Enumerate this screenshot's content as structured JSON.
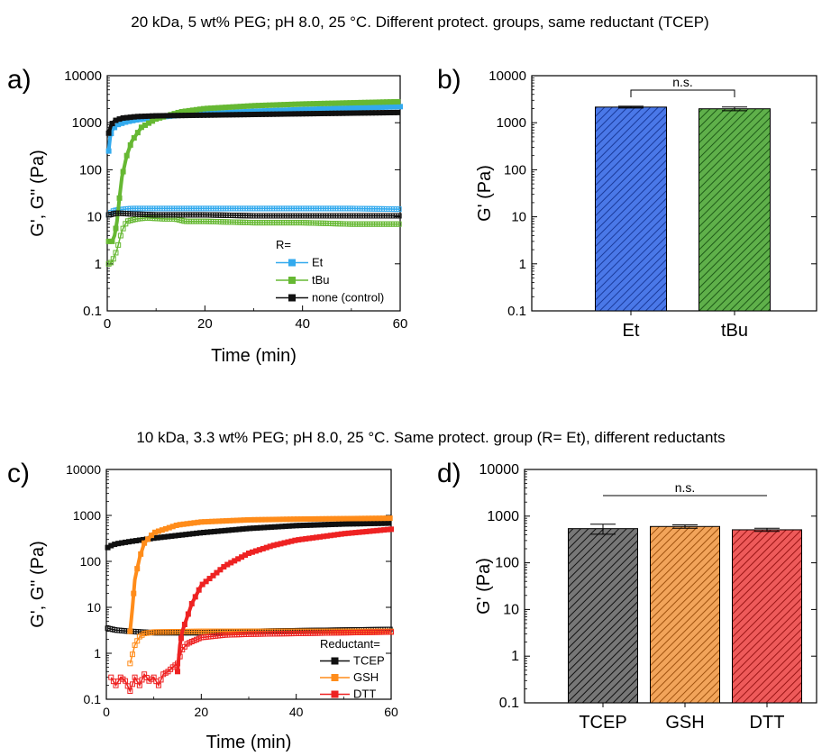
{
  "headers": {
    "top": "20 kDa, 5 wt% PEG; pH 8.0, 25 °C. Different protect. groups, same reductant (TCEP)",
    "bottom": "10 kDa, 3.3 wt% PEG; pH 8.0, 25 °C. Same protect. group (R= Et), different reductants"
  },
  "colors": {
    "Et": "#33aaee",
    "tBu": "#66b833",
    "none (control)": "#111111",
    "TCEP": "#111111",
    "GSH": "#ff8c1a",
    "DTT": "#ee2222"
  },
  "chart_data": [
    {
      "panel": "a)",
      "type": "line",
      "xlabel": "Time (min)",
      "ylabel": "G', G\" (Pa)",
      "xlim": [
        0,
        60
      ],
      "ylim": [
        0.1,
        10000
      ],
      "yscale": "log",
      "x_ticks": [
        "0",
        "20",
        "40",
        "60"
      ],
      "y_ticks": [
        "0.1",
        "1",
        "10",
        "100",
        "1000",
        "10000"
      ],
      "legend": {
        "title": "R=",
        "placement": "bottom-right",
        "entries": [
          "Et",
          "tBu",
          "none (control)"
        ]
      },
      "series": [
        {
          "name": "Et",
          "modulus": "G'",
          "marker": "filled-square",
          "points": [
            [
              0.3,
              250
            ],
            [
              0.6,
              500
            ],
            [
              1,
              700
            ],
            [
              2,
              900
            ],
            [
              4,
              1050
            ],
            [
              6,
              1150
            ],
            [
              10,
              1300
            ],
            [
              15,
              1450
            ],
            [
              20,
              1550
            ],
            [
              30,
              1750
            ],
            [
              40,
              1900
            ],
            [
              50,
              2050
            ],
            [
              60,
              2200
            ]
          ]
        },
        {
          "name": "Et",
          "modulus": "G\"",
          "marker": "open-square",
          "points": [
            [
              0.3,
              11
            ],
            [
              1,
              13
            ],
            [
              2,
              14
            ],
            [
              5,
              15
            ],
            [
              10,
              15
            ],
            [
              20,
              15
            ],
            [
              30,
              15
            ],
            [
              40,
              15
            ],
            [
              50,
              15
            ],
            [
              60,
              14.5
            ]
          ]
        },
        {
          "name": "tBu",
          "modulus": "G'",
          "marker": "filled-square",
          "points": [
            [
              0.3,
              3
            ],
            [
              1,
              3
            ],
            [
              1.5,
              4
            ],
            [
              2,
              8
            ],
            [
              2.5,
              25
            ],
            [
              3,
              70
            ],
            [
              4,
              200
            ],
            [
              5,
              400
            ],
            [
              7,
              800
            ],
            [
              10,
              1200
            ],
            [
              15,
              1700
            ],
            [
              20,
              2000
            ],
            [
              30,
              2300
            ],
            [
              40,
              2500
            ],
            [
              50,
              2650
            ],
            [
              60,
              2800
            ]
          ]
        },
        {
          "name": "tBu",
          "modulus": "G\"",
          "marker": "open-square",
          "points": [
            [
              0.3,
              1
            ],
            [
              1,
              1.1
            ],
            [
              2,
              2
            ],
            [
              3,
              5
            ],
            [
              4,
              8
            ],
            [
              6,
              9
            ],
            [
              8,
              9.5
            ],
            [
              12,
              9
            ],
            [
              14,
              9
            ],
            [
              16,
              8
            ],
            [
              20,
              8
            ],
            [
              30,
              7.5
            ],
            [
              40,
              7.5
            ],
            [
              50,
              7
            ],
            [
              60,
              7
            ]
          ]
        },
        {
          "name": "none (control)",
          "modulus": "G'",
          "marker": "filled-square",
          "points": [
            [
              0.3,
              600
            ],
            [
              0.8,
              900
            ],
            [
              1.5,
              1100
            ],
            [
              3,
              1250
            ],
            [
              6,
              1350
            ],
            [
              10,
              1400
            ],
            [
              20,
              1450
            ],
            [
              30,
              1500
            ],
            [
              40,
              1550
            ],
            [
              50,
              1600
            ],
            [
              60,
              1650
            ]
          ]
        },
        {
          "name": "none (control)",
          "modulus": "G\"",
          "marker": "open-square",
          "points": [
            [
              0.3,
              11
            ],
            [
              2,
              12
            ],
            [
              5,
              11.5
            ],
            [
              10,
              11
            ],
            [
              20,
              11
            ],
            [
              30,
              10.5
            ],
            [
              40,
              10.5
            ],
            [
              50,
              10.5
            ],
            [
              60,
              10.5
            ]
          ]
        }
      ]
    },
    {
      "panel": "b)",
      "type": "bar",
      "ylabel": "G' (Pa)",
      "ylim": [
        0.1,
        10000
      ],
      "yscale": "log",
      "y_ticks": [
        "0.1",
        "1",
        "10",
        "100",
        "1000",
        "10000"
      ],
      "categories": [
        "Et",
        "tBu"
      ],
      "values": [
        2150,
        1980
      ],
      "errors": [
        100,
        180
      ],
      "significance": [
        {
          "between": [
            "Et",
            "tBu"
          ],
          "label": "n.s."
        }
      ]
    },
    {
      "panel": "c)",
      "type": "line",
      "xlabel": "Time (min)",
      "ylabel": "G', G\" (Pa)",
      "xlim": [
        0,
        60
      ],
      "ylim": [
        0.1,
        10000
      ],
      "yscale": "log",
      "x_ticks": [
        "0",
        "20",
        "40",
        "60"
      ],
      "y_ticks": [
        "0.1",
        "1",
        "10",
        "100",
        "1000",
        "10000"
      ],
      "legend": {
        "title": "Reductant=",
        "placement": "bottom-right",
        "entries": [
          "TCEP",
          "GSH",
          "DTT"
        ]
      },
      "series": [
        {
          "name": "TCEP",
          "modulus": "G'",
          "marker": "filled-square",
          "points": [
            [
              0.3,
              200
            ],
            [
              1,
              220
            ],
            [
              2,
              240
            ],
            [
              5,
              270
            ],
            [
              10,
              320
            ],
            [
              20,
              420
            ],
            [
              30,
              520
            ],
            [
              40,
              600
            ],
            [
              50,
              650
            ],
            [
              60,
              680
            ]
          ]
        },
        {
          "name": "TCEP",
          "modulus": "G\"",
          "marker": "open-square",
          "points": [
            [
              0.3,
              3.5
            ],
            [
              2,
              3.2
            ],
            [
              5,
              3
            ],
            [
              10,
              2.8
            ],
            [
              20,
              2.8
            ],
            [
              30,
              3
            ],
            [
              40,
              3.1
            ],
            [
              50,
              3.2
            ],
            [
              60,
              3.3
            ]
          ]
        },
        {
          "name": "GSH",
          "modulus": "G'",
          "marker": "filled-square",
          "points": [
            [
              5,
              3
            ],
            [
              5.5,
              10
            ],
            [
              6,
              40
            ],
            [
              7,
              120
            ],
            [
              8,
              250
            ],
            [
              10,
              420
            ],
            [
              15,
              620
            ],
            [
              20,
              720
            ],
            [
              30,
              800
            ],
            [
              40,
              830
            ],
            [
              50,
              850
            ],
            [
              60,
              870
            ]
          ]
        },
        {
          "name": "GSH",
          "modulus": "G\"",
          "marker": "open-square",
          "points": [
            [
              5,
              0.6
            ],
            [
              6,
              1.5
            ],
            [
              7,
              2.3
            ],
            [
              8,
              2.7
            ],
            [
              10,
              2.9
            ],
            [
              20,
              3
            ],
            [
              30,
              3
            ],
            [
              40,
              3
            ],
            [
              50,
              3
            ],
            [
              60,
              3
            ]
          ]
        },
        {
          "name": "DTT",
          "modulus": "G'",
          "marker": "filled-square",
          "points": [
            [
              15,
              0.4
            ],
            [
              15.5,
              1.5
            ],
            [
              16,
              3
            ],
            [
              17,
              6
            ],
            [
              18,
              12
            ],
            [
              20,
              30
            ],
            [
              25,
              80
            ],
            [
              30,
              150
            ],
            [
              35,
              220
            ],
            [
              40,
              290
            ],
            [
              50,
              400
            ],
            [
              60,
              500
            ]
          ]
        },
        {
          "name": "DTT",
          "modulus": "G\"",
          "marker": "open-square",
          "points": [
            [
              1,
              0.3
            ],
            [
              2,
              0.2
            ],
            [
              3,
              0.3
            ],
            [
              4,
              0.25
            ],
            [
              5,
              0.15
            ],
            [
              6,
              0.3
            ],
            [
              7,
              0.2
            ],
            [
              8,
              0.35
            ],
            [
              9,
              0.25
            ],
            [
              10,
              0.3
            ],
            [
              11,
              0.2
            ],
            [
              12,
              0.35
            ],
            [
              13,
              0.4
            ],
            [
              14,
              0.5
            ],
            [
              15,
              0.6
            ],
            [
              16,
              1.2
            ],
            [
              17,
              1.6
            ],
            [
              18,
              1.8
            ],
            [
              20,
              2.2
            ],
            [
              25,
              2.5
            ],
            [
              30,
              2.6
            ],
            [
              40,
              2.7
            ],
            [
              50,
              2.8
            ],
            [
              60,
              2.9
            ]
          ]
        }
      ]
    },
    {
      "panel": "d)",
      "type": "bar",
      "ylabel": "G' (Pa)",
      "ylim": [
        0.1,
        10000
      ],
      "yscale": "log",
      "y_ticks": [
        "0.1",
        "1",
        "10",
        "100",
        "1000",
        "10000"
      ],
      "categories": [
        "TCEP",
        "GSH",
        "DTT"
      ],
      "values": [
        540,
        600,
        510
      ],
      "errors": [
        130,
        50,
        40
      ],
      "significance": [
        {
          "between": [
            "TCEP",
            "DTT"
          ],
          "label": "n.s."
        }
      ]
    }
  ]
}
